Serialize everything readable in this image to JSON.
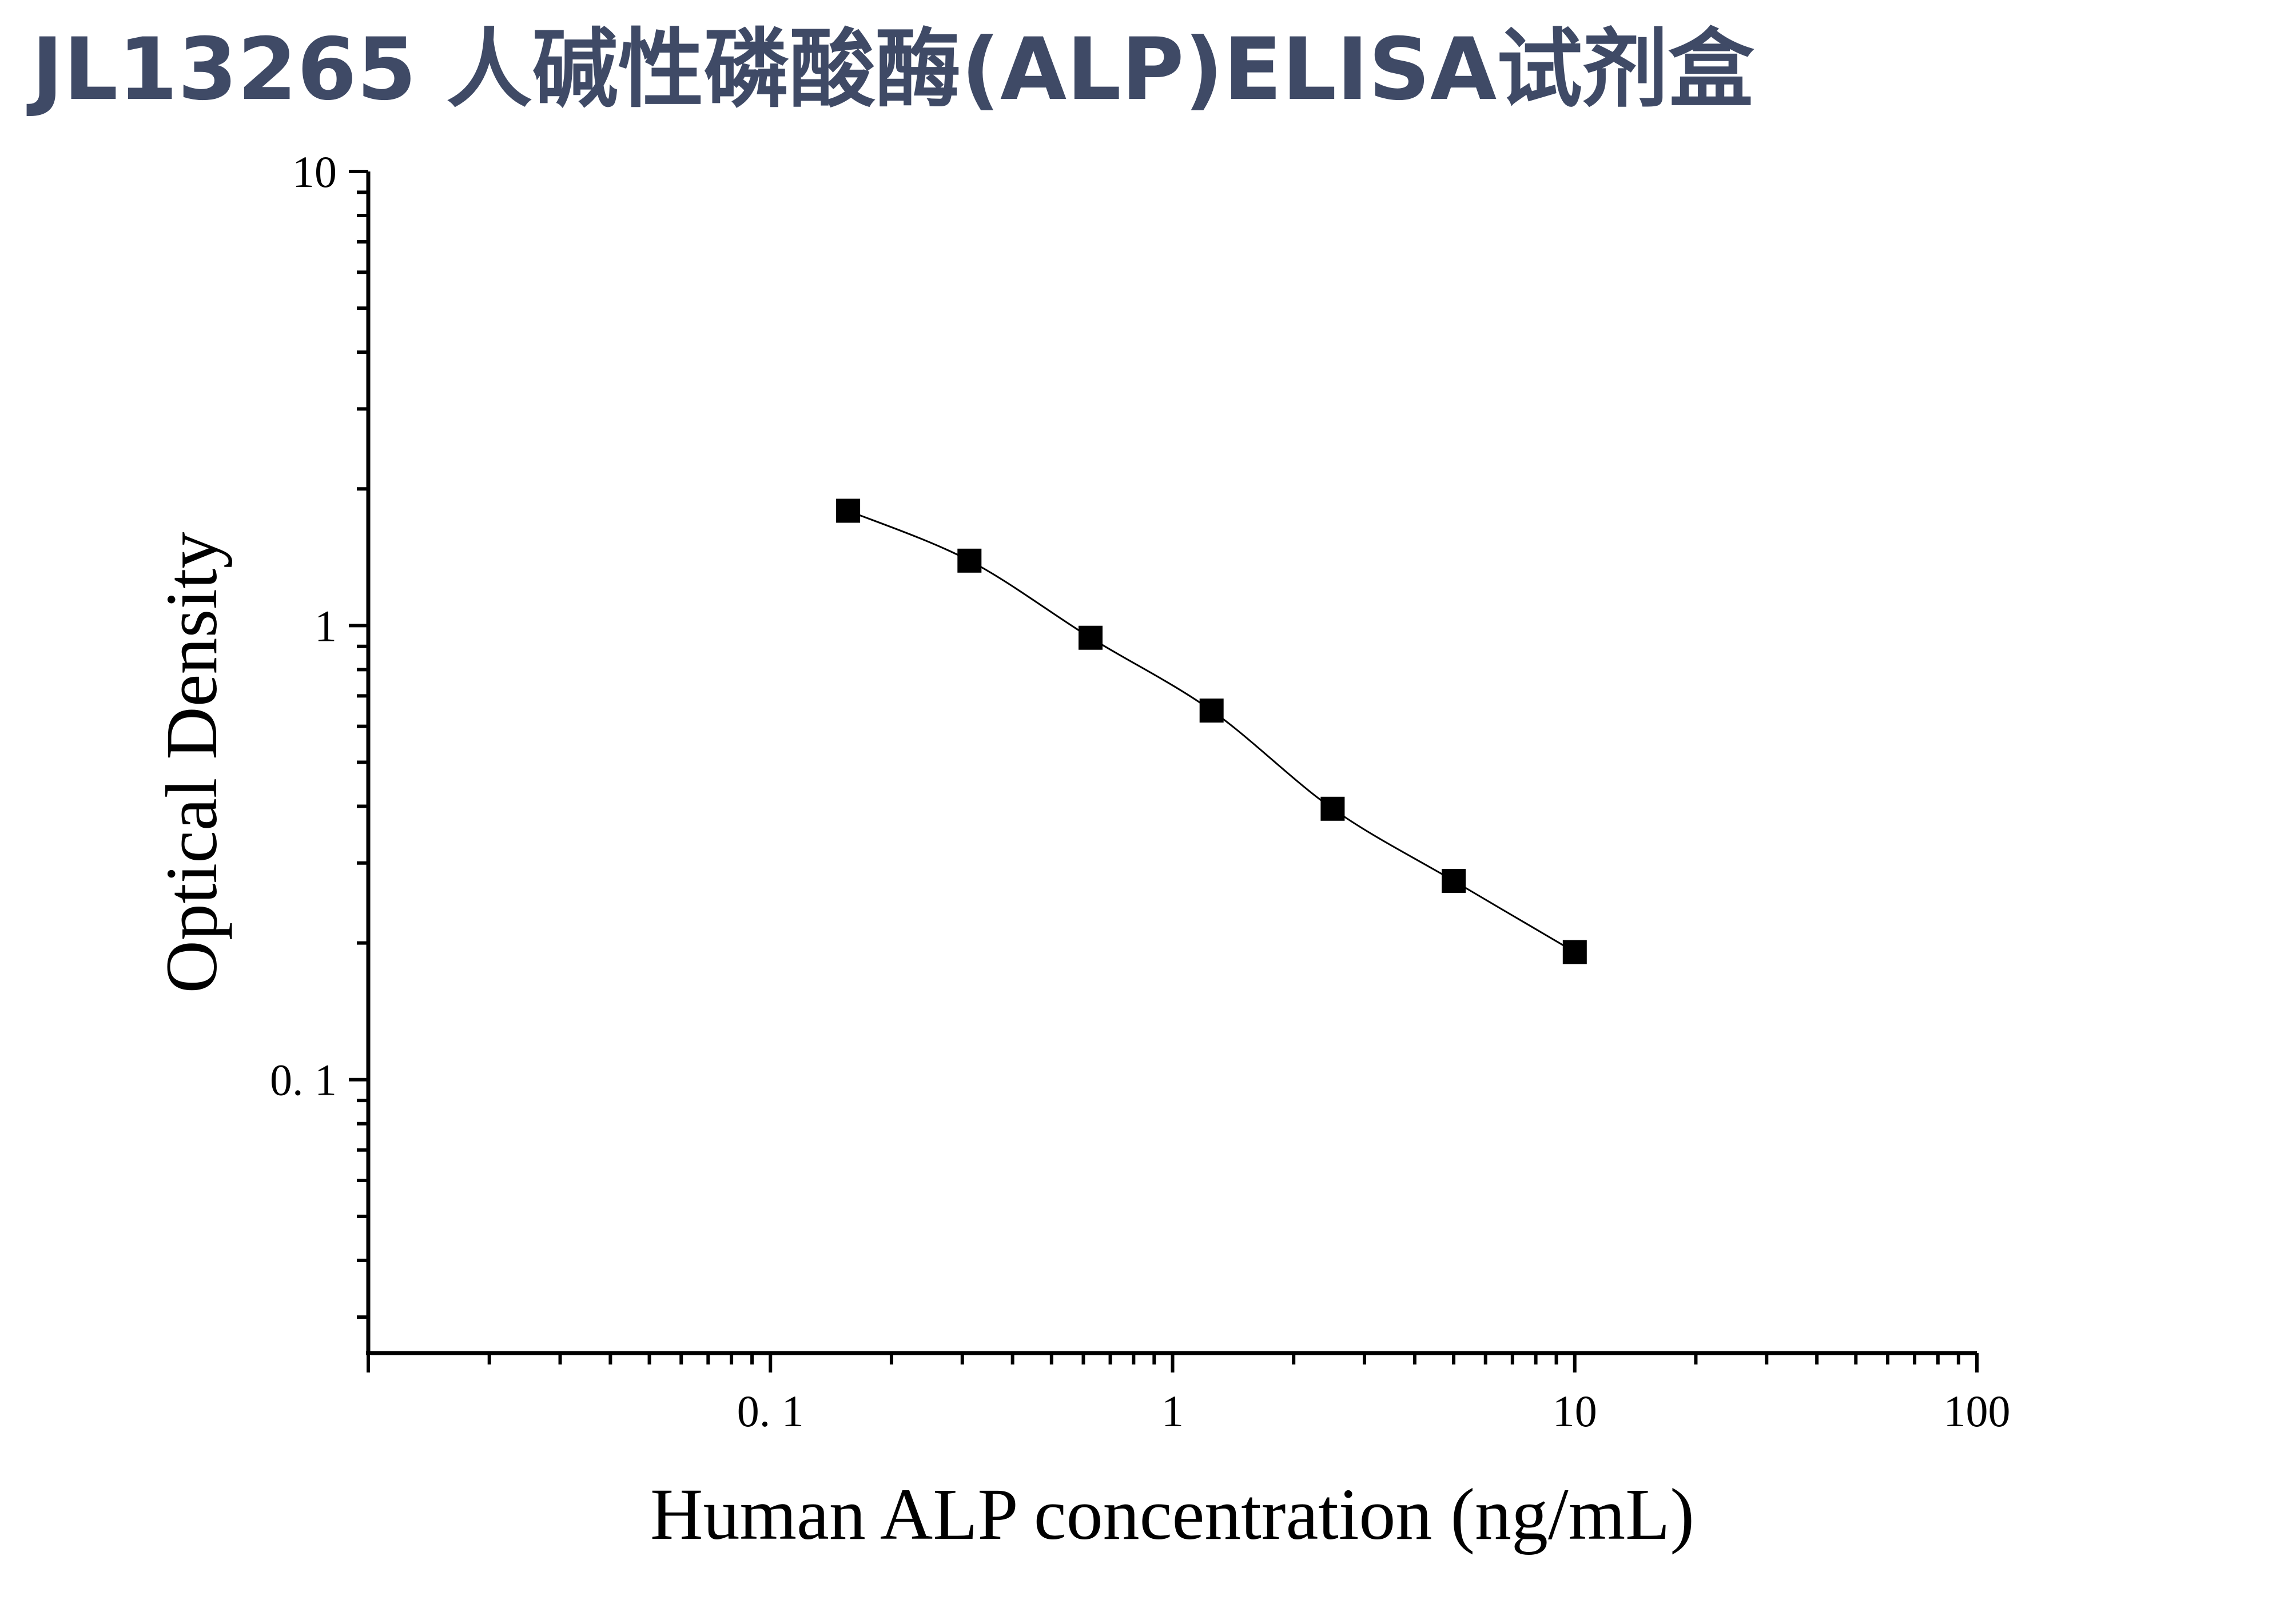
{
  "page": {
    "title": "JL13265 人碱性磷酸酶(ALP)ELISA试剂盒"
  },
  "chart_data": {
    "type": "scatter",
    "xlabel": "Human ALP concentration (ng/mL)",
    "ylabel": "Optical Density",
    "x_scale": "log",
    "y_scale": "log",
    "xlim": [
      0.01,
      100
    ],
    "ylim": [
      0.025,
      10
    ],
    "x_ticks": [
      {
        "value": 0.1,
        "label": "0. 1"
      },
      {
        "value": 1,
        "label": "1"
      },
      {
        "value": 10,
        "label": "10"
      },
      {
        "value": 100,
        "label": "100"
      }
    ],
    "y_ticks": [
      {
        "value": 0.1,
        "label": "0. 1"
      },
      {
        "value": 1,
        "label": "1"
      },
      {
        "value": 10,
        "label": "10"
      }
    ],
    "series": [
      {
        "x": [
          0.156,
          0.3125,
          0.625,
          1.25,
          2.5,
          5,
          10
        ],
        "y": [
          1.79,
          1.39,
          0.94,
          0.65,
          0.395,
          0.274,
          0.191
        ],
        "marker": "square",
        "fit": "smooth-curve"
      }
    ],
    "colors": {
      "marker": "#000000",
      "curve": "#000000",
      "axis": "#000000",
      "title": "#3f4a66"
    },
    "grid": false,
    "legend": "none"
  }
}
